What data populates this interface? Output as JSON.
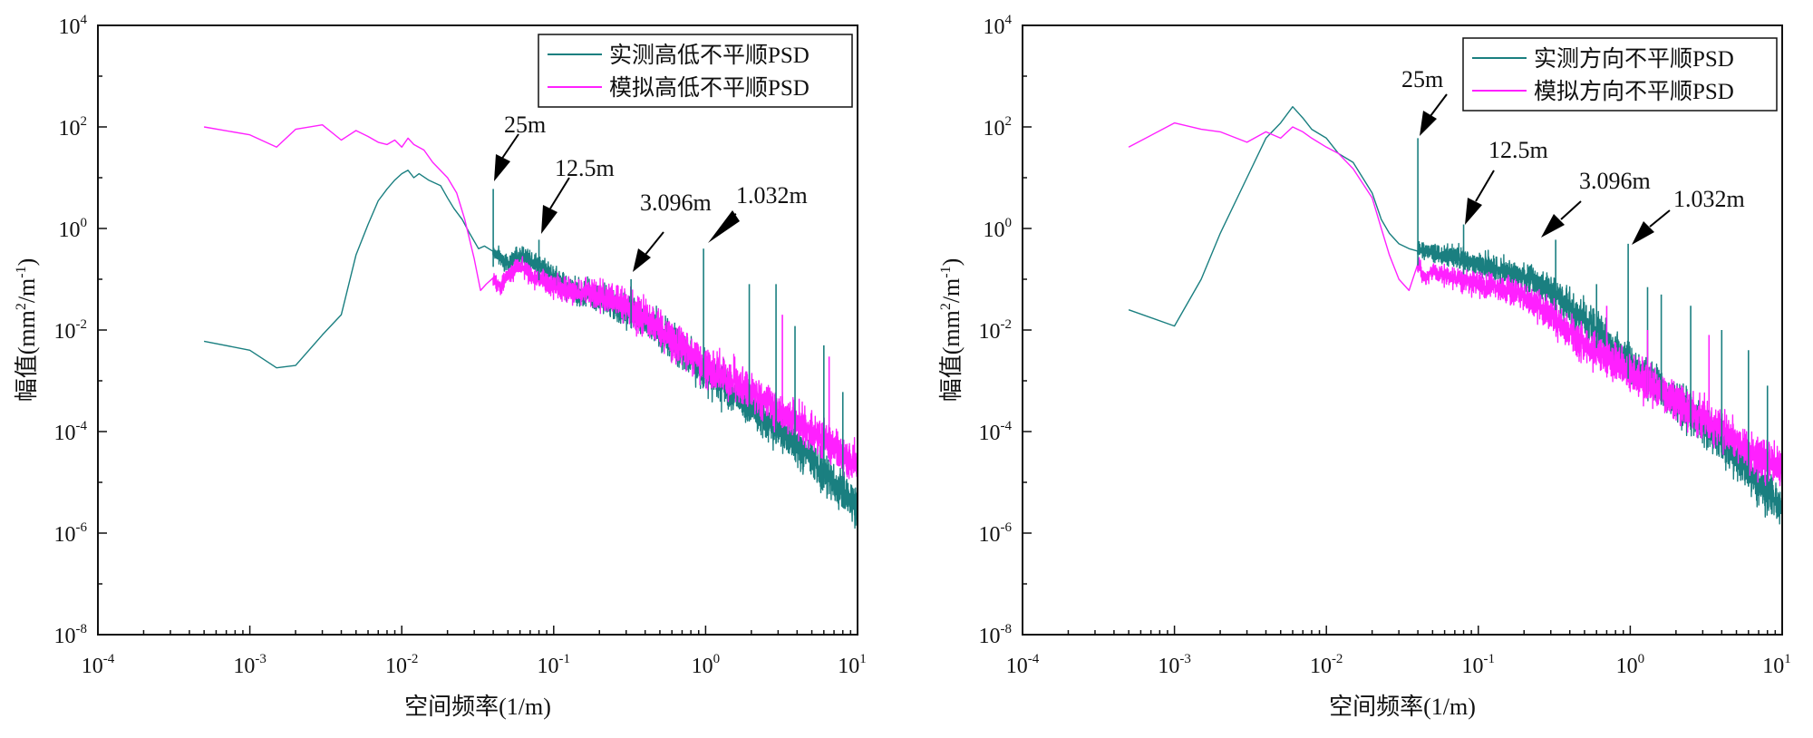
{
  "chart_data": [
    {
      "type": "line",
      "xscale": "log",
      "yscale": "log",
      "xlim": [
        0.0001,
        10
      ],
      "ylim": [
        1e-08,
        10000
      ],
      "xlabel": "空间频率(1/m)",
      "ylabel": "幅值(mm²/m⁻¹)",
      "ylabel_parts": {
        "a": "幅值(mm",
        "sup1": "2",
        "b": "/m",
        "sup2": "-1",
        "c": ")"
      },
      "x_ticks": [
        {
          "base": "10",
          "exp": "-4"
        },
        {
          "base": "10",
          "exp": "-3"
        },
        {
          "base": "10",
          "exp": "-2"
        },
        {
          "base": "10",
          "exp": "-1"
        },
        {
          "base": "10",
          "exp": "0"
        },
        {
          "base": "10",
          "exp": "1"
        }
      ],
      "y_ticks": [
        {
          "base": "10",
          "exp": "-8"
        },
        {
          "base": "10",
          "exp": "-6"
        },
        {
          "base": "10",
          "exp": "-4"
        },
        {
          "base": "10",
          "exp": "-2"
        },
        {
          "base": "10",
          "exp": "0"
        },
        {
          "base": "10",
          "exp": "2"
        },
        {
          "base": "10",
          "exp": "4"
        }
      ],
      "legend_position": "top-right",
      "series": [
        {
          "name": "实测高低不平顺PSD",
          "color": "#1a7f80",
          "points": [
            [
              0.0005,
              0.006
            ],
            [
              0.001,
              0.004
            ],
            [
              0.0015,
              0.0018
            ],
            [
              0.002,
              0.002
            ],
            [
              0.003,
              0.008
            ],
            [
              0.004,
              0.02
            ],
            [
              0.005,
              0.3
            ],
            [
              0.006,
              1.2
            ],
            [
              0.007,
              3.5
            ],
            [
              0.008,
              6
            ],
            [
              0.009,
              9
            ],
            [
              0.01,
              12
            ],
            [
              0.011,
              14
            ],
            [
              0.012,
              10
            ],
            [
              0.013,
              12
            ],
            [
              0.015,
              9
            ],
            [
              0.018,
              7
            ],
            [
              0.02,
              4
            ],
            [
              0.022,
              2.5
            ],
            [
              0.025,
              1.5
            ],
            [
              0.028,
              0.8
            ],
            [
              0.032,
              0.4
            ],
            [
              0.035,
              0.45
            ],
            [
              0.04,
              0.35
            ],
            [
              0.05,
              0.2
            ],
            [
              0.06,
              0.3
            ],
            [
              0.07,
              0.25
            ],
            [
              0.09,
              0.15
            ],
            [
              0.12,
              0.07
            ],
            [
              0.2,
              0.04
            ],
            [
              0.3,
              0.025
            ],
            [
              0.5,
              0.01
            ],
            [
              1,
              0.0015
            ],
            [
              2,
              0.0003
            ],
            [
              4,
              5e-05
            ],
            [
              7,
              1e-05
            ],
            [
              10,
              3e-06
            ]
          ],
          "spikes": [
            [
              0.04,
              6
            ],
            [
              0.08,
              0.6
            ],
            [
              0.323,
              0.1
            ],
            [
              0.969,
              0.4
            ],
            [
              1.938,
              0.08
            ],
            [
              2.907,
              0.08
            ],
            [
              3.876,
              0.012
            ],
            [
              6,
              0.005
            ],
            [
              8,
              0.0006
            ]
          ],
          "noise_decades": 0.35
        },
        {
          "name": "模拟高低不平顺PSD",
          "color": "#ff20ff",
          "points": [
            [
              0.0005,
              100
            ],
            [
              0.001,
              70
            ],
            [
              0.0015,
              40
            ],
            [
              0.002,
              90
            ],
            [
              0.003,
              110
            ],
            [
              0.004,
              55
            ],
            [
              0.005,
              85
            ],
            [
              0.006,
              65
            ],
            [
              0.007,
              50
            ],
            [
              0.008,
              45
            ],
            [
              0.009,
              55
            ],
            [
              0.01,
              40
            ],
            [
              0.011,
              60
            ],
            [
              0.012,
              45
            ],
            [
              0.014,
              35
            ],
            [
              0.016,
              20
            ],
            [
              0.02,
              10
            ],
            [
              0.023,
              5
            ],
            [
              0.026,
              1.5
            ],
            [
              0.03,
              0.25
            ],
            [
              0.033,
              0.06
            ],
            [
              0.036,
              0.08
            ],
            [
              0.04,
              0.1
            ],
            [
              0.045,
              0.07
            ],
            [
              0.05,
              0.12
            ],
            [
              0.06,
              0.2
            ],
            [
              0.07,
              0.12
            ],
            [
              0.09,
              0.08
            ],
            [
              0.12,
              0.06
            ],
            [
              0.2,
              0.05
            ],
            [
              0.3,
              0.03
            ],
            [
              0.5,
              0.01
            ],
            [
              1,
              0.002
            ],
            [
              2,
              0.0006
            ],
            [
              4,
              0.00015
            ],
            [
              7,
              5e-05
            ],
            [
              10,
              2e-05
            ]
          ],
          "spikes": [
            [
              3.2,
              0.02
            ],
            [
              6.5,
              0.003
            ]
          ],
          "noise_decades": 0.35
        }
      ],
      "annotations": [
        {
          "text": "25m",
          "x": 0.04,
          "y": 6
        },
        {
          "text": "12.5m",
          "x": 0.08,
          "y": 0.6
        },
        {
          "text": "3.096m",
          "x": 0.323,
          "y": 0.1
        },
        {
          "text": "1.032m",
          "x": 0.969,
          "y": 0.4
        }
      ]
    },
    {
      "type": "line",
      "xscale": "log",
      "yscale": "log",
      "xlim": [
        0.0001,
        10
      ],
      "ylim": [
        1e-08,
        10000
      ],
      "xlabel": "空间频率(1/m)",
      "ylabel": "幅值(mm²/m⁻¹)",
      "ylabel_parts": {
        "a": "幅值(mm",
        "sup1": "2",
        "b": "/m",
        "sup2": "-1",
        "c": ")"
      },
      "x_ticks": [
        {
          "base": "10",
          "exp": "-4"
        },
        {
          "base": "10",
          "exp": "-3"
        },
        {
          "base": "10",
          "exp": "-2"
        },
        {
          "base": "10",
          "exp": "-1"
        },
        {
          "base": "10",
          "exp": "0"
        },
        {
          "base": "10",
          "exp": "1"
        }
      ],
      "y_ticks": [
        {
          "base": "10",
          "exp": "-8"
        },
        {
          "base": "10",
          "exp": "-6"
        },
        {
          "base": "10",
          "exp": "-4"
        },
        {
          "base": "10",
          "exp": "-2"
        },
        {
          "base": "10",
          "exp": "0"
        },
        {
          "base": "10",
          "exp": "2"
        },
        {
          "base": "10",
          "exp": "4"
        }
      ],
      "legend_position": "top-right",
      "series": [
        {
          "name": "实测方向不平顺PSD",
          "color": "#1a7f80",
          "points": [
            [
              0.0005,
              0.025
            ],
            [
              0.001,
              0.012
            ],
            [
              0.0015,
              0.1
            ],
            [
              0.002,
              0.8
            ],
            [
              0.003,
              10
            ],
            [
              0.004,
              60
            ],
            [
              0.005,
              120
            ],
            [
              0.006,
              250
            ],
            [
              0.007,
              150
            ],
            [
              0.008,
              90
            ],
            [
              0.01,
              60
            ],
            [
              0.012,
              30
            ],
            [
              0.015,
              20
            ],
            [
              0.02,
              5
            ],
            [
              0.023,
              1.5
            ],
            [
              0.026,
              0.8
            ],
            [
              0.03,
              0.5
            ],
            [
              0.035,
              0.4
            ],
            [
              0.045,
              0.35
            ],
            [
              0.06,
              0.3
            ],
            [
              0.08,
              0.25
            ],
            [
              0.1,
              0.2
            ],
            [
              0.2,
              0.12
            ],
            [
              0.3,
              0.06
            ],
            [
              0.5,
              0.015
            ],
            [
              1,
              0.002
            ],
            [
              2,
              0.0004
            ],
            [
              4,
              6e-05
            ],
            [
              7,
              1e-05
            ],
            [
              10,
              3e-06
            ]
          ],
          "spikes": [
            [
              0.04,
              60
            ],
            [
              0.08,
              1.2
            ],
            [
              0.323,
              0.6
            ],
            [
              0.969,
              0.5
            ],
            [
              0.6,
              0.08
            ],
            [
              1.3,
              0.07
            ],
            [
              1.6,
              0.05
            ],
            [
              2.5,
              0.03
            ],
            [
              4,
              0.01
            ],
            [
              6,
              0.004
            ],
            [
              8,
              0.0008
            ]
          ],
          "noise_decades": 0.35
        },
        {
          "name": "模拟方向不平顺PSD",
          "color": "#ff20ff",
          "points": [
            [
              0.0005,
              40
            ],
            [
              0.001,
              120
            ],
            [
              0.0015,
              90
            ],
            [
              0.002,
              80
            ],
            [
              0.003,
              50
            ],
            [
              0.004,
              80
            ],
            [
              0.005,
              60
            ],
            [
              0.006,
              100
            ],
            [
              0.007,
              80
            ],
            [
              0.008,
              60
            ],
            [
              0.01,
              40
            ],
            [
              0.012,
              30
            ],
            [
              0.015,
              15
            ],
            [
              0.02,
              4
            ],
            [
              0.023,
              1
            ],
            [
              0.026,
              0.3
            ],
            [
              0.03,
              0.1
            ],
            [
              0.035,
              0.06
            ],
            [
              0.04,
              0.2
            ],
            [
              0.045,
              0.1
            ],
            [
              0.05,
              0.15
            ],
            [
              0.06,
              0.12
            ],
            [
              0.08,
              0.1
            ],
            [
              0.1,
              0.08
            ],
            [
              0.2,
              0.05
            ],
            [
              0.3,
              0.02
            ],
            [
              0.5,
              0.005
            ],
            [
              1,
              0.0015
            ],
            [
              2,
              0.0004
            ],
            [
              4,
              0.0001
            ],
            [
              7,
              3e-05
            ],
            [
              10,
              2e-05
            ]
          ],
          "spikes": [
            [
              0.7,
              0.03
            ],
            [
              1.3,
              0.01
            ],
            [
              3.3,
              0.008
            ]
          ],
          "noise_decades": 0.35
        }
      ],
      "annotations": [
        {
          "text": "25m",
          "x": 0.04,
          "y": 60
        },
        {
          "text": "12.5m",
          "x": 0.08,
          "y": 1.2
        },
        {
          "text": "3.096m",
          "x": 0.323,
          "y": 0.6
        },
        {
          "text": "1.032m",
          "x": 0.969,
          "y": 0.5
        }
      ]
    }
  ]
}
